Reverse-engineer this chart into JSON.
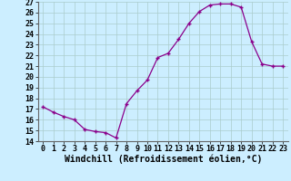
{
  "x": [
    0,
    1,
    2,
    3,
    4,
    5,
    6,
    7,
    8,
    9,
    10,
    11,
    12,
    13,
    14,
    15,
    16,
    17,
    18,
    19,
    20,
    21,
    22,
    23
  ],
  "y": [
    17.2,
    16.7,
    16.3,
    16.0,
    15.1,
    14.9,
    14.8,
    14.3,
    17.5,
    18.7,
    19.7,
    21.8,
    22.2,
    23.5,
    25.0,
    26.1,
    26.7,
    26.8,
    26.8,
    26.5,
    23.3,
    21.2,
    21.0,
    21.0
  ],
  "xlabel": "Windchill (Refroidissement éolien,°C)",
  "ylim": [
    14,
    27
  ],
  "xlim": [
    -0.5,
    23.5
  ],
  "yticks": [
    14,
    15,
    16,
    17,
    18,
    19,
    20,
    21,
    22,
    23,
    24,
    25,
    26,
    27
  ],
  "xticks": [
    0,
    1,
    2,
    3,
    4,
    5,
    6,
    7,
    8,
    9,
    10,
    11,
    12,
    13,
    14,
    15,
    16,
    17,
    18,
    19,
    20,
    21,
    22,
    23
  ],
  "line_color": "#8B008B",
  "marker": "+",
  "bg_color": "#cceeff",
  "grid_color": "#aacccc",
  "tick_fontsize": 6,
  "xlabel_fontsize": 7
}
